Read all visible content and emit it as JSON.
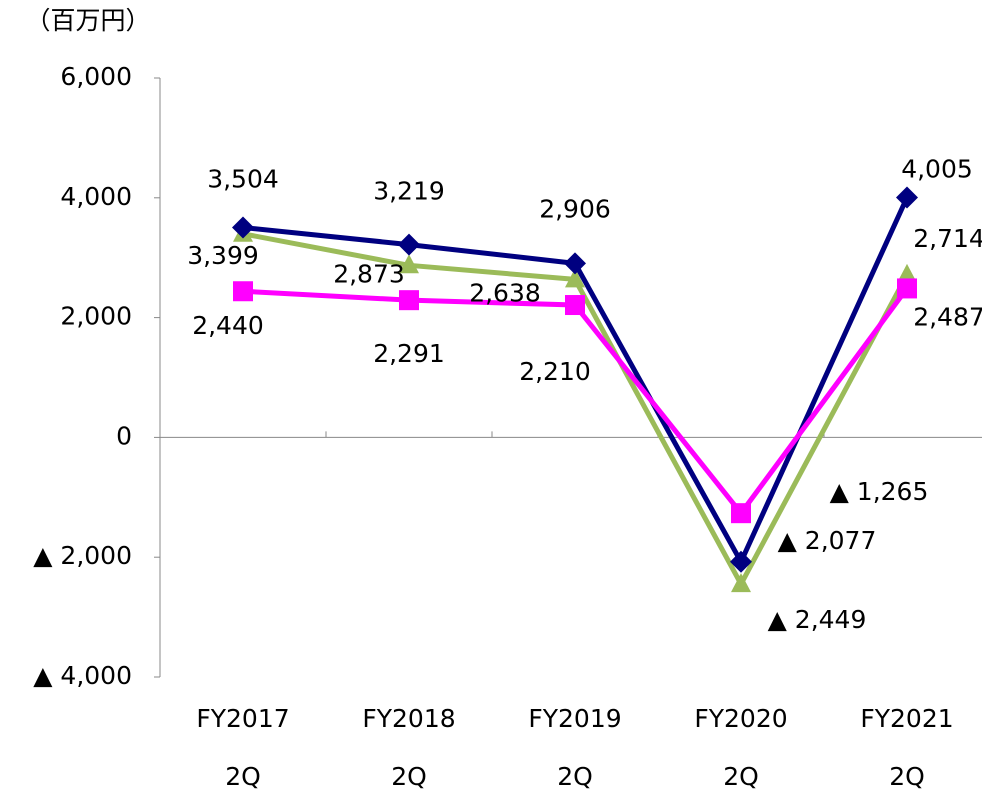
{
  "chart_data": {
    "type": "line",
    "y_axis_label": "（百万円）",
    "categories": [
      [
        "FY2017",
        "2Q"
      ],
      [
        "FY2018",
        "2Q"
      ],
      [
        "FY2019",
        "2Q"
      ],
      [
        "FY2020",
        "2Q"
      ],
      [
        "FY2021",
        "2Q"
      ]
    ],
    "series": [
      {
        "color": "#9bbb59",
        "marker": "triangle",
        "values": [
          3399,
          2873,
          2638,
          -2449,
          2714
        ],
        "value_labels": [
          "3,399",
          "2,873",
          "2,638",
          "▲ 2,449",
          "2,714"
        ]
      },
      {
        "color": "#000080",
        "marker": "diamond",
        "values": [
          3504,
          3219,
          2906,
          -2077,
          4005
        ],
        "value_labels": [
          "3,504",
          "3,219",
          "2,906",
          "▲ 2,077",
          "4,005"
        ]
      },
      {
        "color": "#ff00ff",
        "marker": "square",
        "values": [
          2440,
          2291,
          2210,
          -1265,
          2487
        ],
        "value_labels": [
          "2,440",
          "2,291",
          "2,210",
          "▲ 1,265",
          "2,487"
        ]
      }
    ],
    "ylim": [
      -4000,
      6000
    ],
    "yticks": [
      {
        "value": -4000,
        "label": "▲ 4,000"
      },
      {
        "value": -2000,
        "label": "▲ 2,000"
      },
      0,
      {
        "value": 2000,
        "label": "2,000"
      },
      {
        "value": 4000,
        "label": "4,000"
      },
      {
        "value": 6000,
        "label": "6,000"
      }
    ],
    "grid": false
  }
}
